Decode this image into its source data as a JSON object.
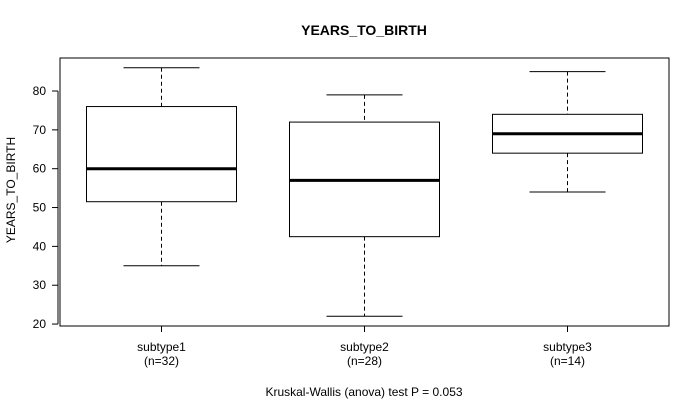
{
  "chart_data": {
    "type": "boxplot",
    "title": "YEARS_TO_BIRTH",
    "ylabel": "YEARS_TO_BIRTH",
    "xlabel": "",
    "ylim": [
      19.5,
      88.5
    ],
    "yticks": [
      20,
      30,
      40,
      50,
      60,
      70,
      80
    ],
    "grid": false,
    "categories": [
      "subtype1",
      "subtype2",
      "subtype3"
    ],
    "counts": [
      "(n=32)",
      "(n=28)",
      "(n=14)"
    ],
    "boxes": [
      {
        "category": "subtype1",
        "min": 35,
        "q1": 51.5,
        "median": 60,
        "q3": 76,
        "max": 86
      },
      {
        "category": "subtype2",
        "min": 22,
        "q1": 42.5,
        "median": 57,
        "q3": 72,
        "max": 79
      },
      {
        "category": "subtype3",
        "min": 54,
        "q1": 64,
        "median": 69,
        "q3": 74,
        "max": 85
      }
    ],
    "footnote": "Kruskal-Wallis (anova) test P = 0.053"
  }
}
